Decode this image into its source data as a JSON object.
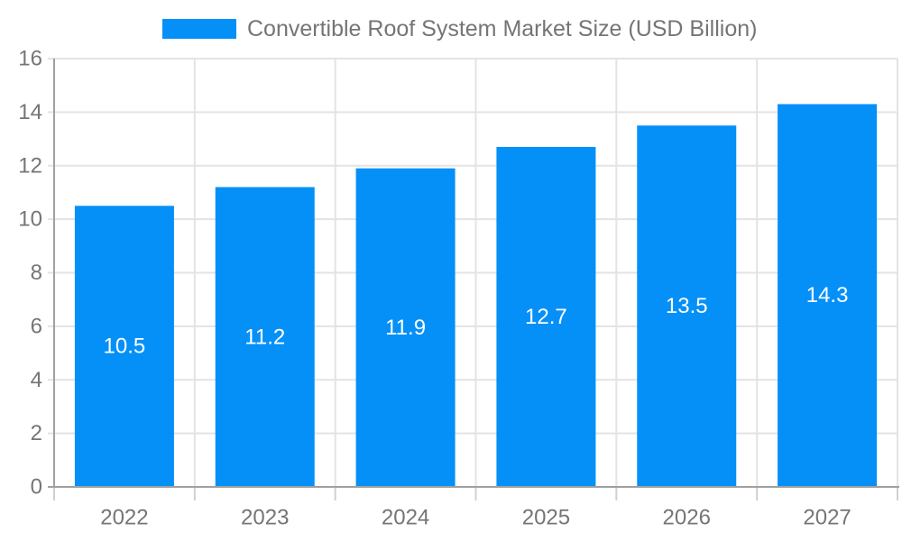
{
  "legend": {
    "label": "Convertible Roof System Market Size (USD Billion)"
  },
  "chart_data": {
    "type": "bar",
    "categories": [
      "2022",
      "2023",
      "2024",
      "2025",
      "2026",
      "2027"
    ],
    "values": [
      10.5,
      11.2,
      11.9,
      12.7,
      13.5,
      14.3
    ],
    "title": "Convertible Roof System Market Size (USD Billion)",
    "xlabel": "",
    "ylabel": "",
    "ylim": [
      0,
      16
    ],
    "yticks": [
      0,
      2,
      4,
      6,
      8,
      10,
      12,
      14,
      16
    ],
    "grid": true,
    "legend_position": "top",
    "value_labels": "inside-center"
  },
  "colors": {
    "bar": "#0590F8",
    "bar_label": "#ffffff",
    "text": "#757575",
    "grid": "#e3e3e3",
    "tick": "#d0d0d0",
    "axis": "#a0a0a0",
    "background": "#ffffff"
  }
}
